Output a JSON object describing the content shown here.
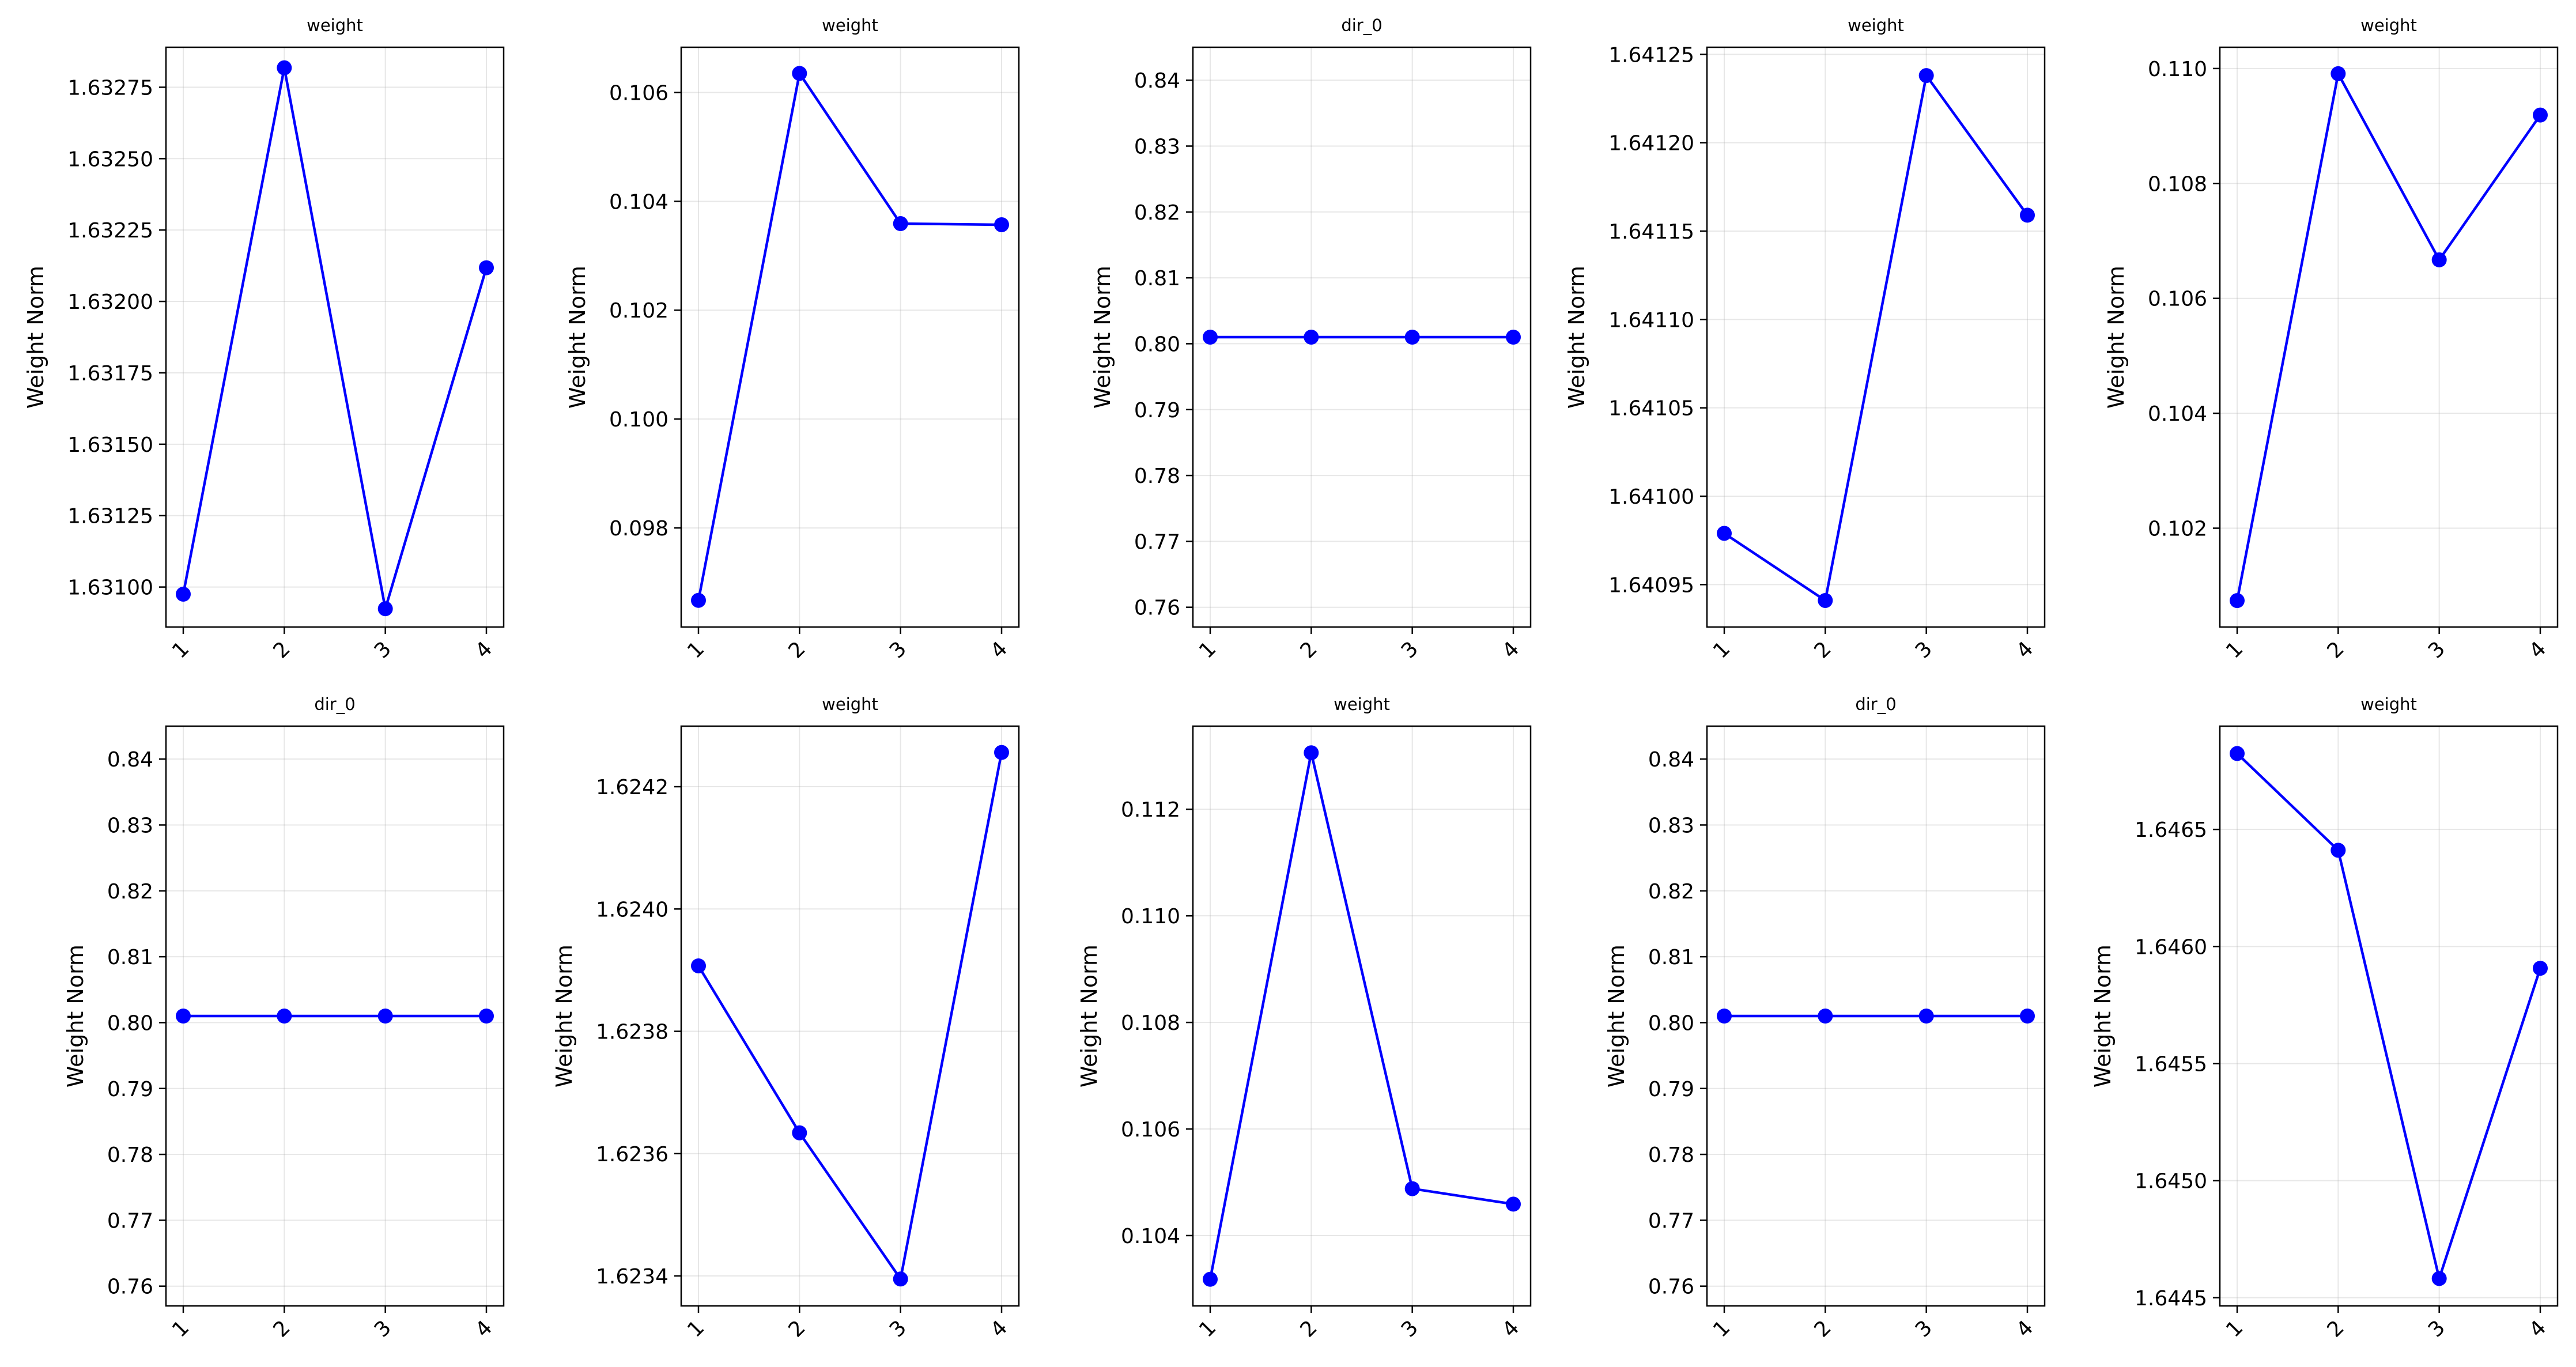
{
  "chart_data": [
    {
      "type": "line",
      "title": "weight",
      "ylabel": "Weight Norm",
      "grid": true,
      "x": [
        "1",
        "2",
        "3",
        "4"
      ],
      "series": [
        {
          "color": "#0000ff",
          "values": [
            1.630975,
            1.632818,
            1.630924,
            1.632118
          ]
        }
      ],
      "ylim": [
        1.63086,
        1.63289
      ],
      "yticks": [
        1.631,
        1.63125,
        1.6315,
        1.63175,
        1.632,
        1.63225,
        1.6325,
        1.63275
      ],
      "ytick_labels": [
        "1.63100",
        "1.63125",
        "1.63150",
        "1.63175",
        "1.63200",
        "1.63225",
        "1.63250",
        "1.63275"
      ]
    },
    {
      "type": "line",
      "title": "weight",
      "ylabel": "Weight Norm",
      "grid": true,
      "x": [
        "1",
        "2",
        "3",
        "4"
      ],
      "series": [
        {
          "color": "#0000ff",
          "values": [
            0.09667,
            0.10635,
            0.10359,
            0.10357
          ]
        }
      ],
      "ylim": [
        0.09618,
        0.10683
      ],
      "yticks": [
        0.098,
        0.1,
        0.102,
        0.104,
        0.106
      ],
      "ytick_labels": [
        "0.098",
        "0.100",
        "0.102",
        "0.104",
        "0.106"
      ]
    },
    {
      "type": "line",
      "title": "dir_0",
      "ylabel": "Weight Norm",
      "grid": true,
      "x": [
        "1",
        "2",
        "3",
        "4"
      ],
      "series": [
        {
          "color": "#0000ff",
          "values": [
            0.801,
            0.801,
            0.801,
            0.801
          ]
        }
      ],
      "ylim": [
        0.757,
        0.845
      ],
      "yticks": [
        0.76,
        0.77,
        0.78,
        0.79,
        0.8,
        0.81,
        0.82,
        0.83,
        0.84
      ],
      "ytick_labels": [
        "0.76",
        "0.77",
        "0.78",
        "0.79",
        "0.80",
        "0.81",
        "0.82",
        "0.83",
        "0.84"
      ]
    },
    {
      "type": "line",
      "title": "weight",
      "ylabel": "Weight Norm",
      "grid": true,
      "x": [
        "1",
        "2",
        "3",
        "4"
      ],
      "series": [
        {
          "color": "#0000ff",
          "values": [
            1.640979,
            1.640941,
            1.641238,
            1.641159
          ]
        }
      ],
      "ylim": [
        1.640926,
        1.641254
      ],
      "yticks": [
        1.64095,
        1.641,
        1.64105,
        1.6411,
        1.64115,
        1.6412,
        1.64125
      ],
      "ytick_labels": [
        "1.64095",
        "1.64100",
        "1.64105",
        "1.64110",
        "1.64115",
        "1.64120",
        "1.64125"
      ]
    },
    {
      "type": "line",
      "title": "weight",
      "ylabel": "Weight Norm",
      "grid": true,
      "x": [
        "1",
        "2",
        "3",
        "4"
      ],
      "series": [
        {
          "color": "#0000ff",
          "values": [
            0.10074,
            0.10991,
            0.10667,
            0.10919
          ]
        }
      ],
      "ylim": [
        0.10028,
        0.11037
      ],
      "yticks": [
        0.102,
        0.104,
        0.106,
        0.108,
        0.11
      ],
      "ytick_labels": [
        "0.102",
        "0.104",
        "0.106",
        "0.108",
        "0.110"
      ]
    },
    {
      "type": "line",
      "title": "dir_0",
      "ylabel": "Weight Norm",
      "grid": true,
      "x": [
        "1",
        "2",
        "3",
        "4"
      ],
      "series": [
        {
          "color": "#0000ff",
          "values": [
            0.801,
            0.801,
            0.801,
            0.801
          ]
        }
      ],
      "ylim": [
        0.757,
        0.845
      ],
      "yticks": [
        0.76,
        0.77,
        0.78,
        0.79,
        0.8,
        0.81,
        0.82,
        0.83,
        0.84
      ],
      "ytick_labels": [
        "0.76",
        "0.77",
        "0.78",
        "0.79",
        "0.80",
        "0.81",
        "0.82",
        "0.83",
        "0.84"
      ]
    },
    {
      "type": "line",
      "title": "weight",
      "ylabel": "Weight Norm",
      "grid": true,
      "x": [
        "1",
        "2",
        "3",
        "4"
      ],
      "series": [
        {
          "color": "#0000ff",
          "values": [
            1.623907,
            1.623634,
            1.623395,
            1.624256
          ]
        }
      ],
      "ylim": [
        1.623351,
        1.624299
      ],
      "yticks": [
        1.6234,
        1.6236,
        1.6238,
        1.624,
        1.6242
      ],
      "ytick_labels": [
        "1.6234",
        "1.6236",
        "1.6238",
        "1.6240",
        "1.6242"
      ]
    },
    {
      "type": "line",
      "title": "weight",
      "ylabel": "Weight Norm",
      "grid": true,
      "x": [
        "1",
        "2",
        "3",
        "4"
      ],
      "series": [
        {
          "color": "#0000ff",
          "values": [
            0.10318,
            0.11306,
            0.10488,
            0.10459
          ]
        }
      ],
      "ylim": [
        0.10268,
        0.11356
      ],
      "yticks": [
        0.104,
        0.106,
        0.108,
        0.11,
        0.112
      ],
      "ytick_labels": [
        "0.104",
        "0.106",
        "0.108",
        "0.110",
        "0.112"
      ]
    },
    {
      "type": "line",
      "title": "dir_0",
      "ylabel": "Weight Norm",
      "grid": true,
      "x": [
        "1",
        "2",
        "3",
        "4"
      ],
      "series": [
        {
          "color": "#0000ff",
          "values": [
            0.801,
            0.801,
            0.801,
            0.801
          ]
        }
      ],
      "ylim": [
        0.757,
        0.845
      ],
      "yticks": [
        0.76,
        0.77,
        0.78,
        0.79,
        0.8,
        0.81,
        0.82,
        0.83,
        0.84
      ],
      "ytick_labels": [
        "0.76",
        "0.77",
        "0.78",
        "0.79",
        "0.80",
        "0.81",
        "0.82",
        "0.83",
        "0.84"
      ]
    },
    {
      "type": "line",
      "title": "weight",
      "ylabel": "Weight Norm",
      "grid": true,
      "x": [
        "1",
        "2",
        "3",
        "4"
      ],
      "series": [
        {
          "color": "#0000ff",
          "values": [
            1.646824,
            1.646411,
            1.644582,
            1.645907
          ]
        }
      ],
      "ylim": [
        1.644465,
        1.646941
      ],
      "yticks": [
        1.6445,
        1.645,
        1.6455,
        1.646,
        1.6465
      ],
      "ytick_labels": [
        "1.6445",
        "1.6450",
        "1.6455",
        "1.6460",
        "1.6465"
      ]
    }
  ]
}
